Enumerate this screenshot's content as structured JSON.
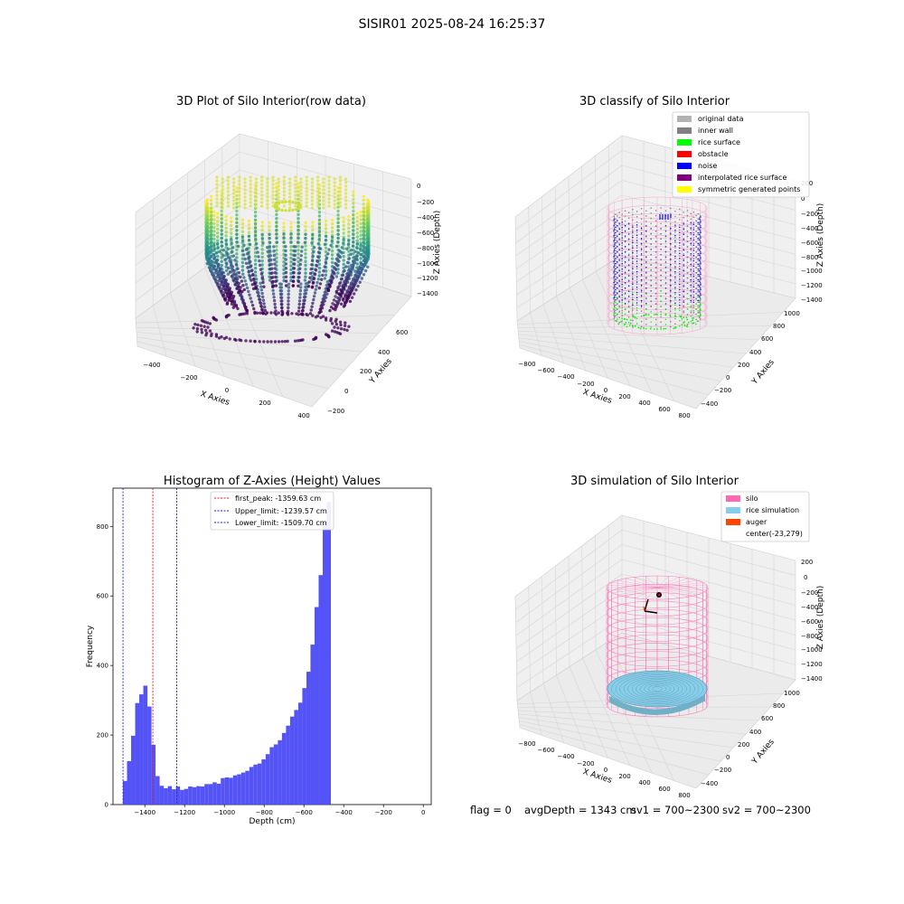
{
  "suptitle": "SISIR01 2025-08-24 16:25:37",
  "info": {
    "flag": "flag = 0",
    "avg_depth": "avgDepth = 1343 cm",
    "sv1": "sv1 = 700~2300",
    "sv2": "sv2 = 700~2300"
  },
  "colors": {
    "histogram": "#4b4bf5",
    "first_peak_line": "#e31a1c",
    "limit_lines": "#1f1fd6",
    "original_data": "#b3b3b3",
    "inner_wall": "#808080",
    "rice_surface": "#00ff00",
    "obstacle": "#ff0000",
    "noise": "#0000ff",
    "interpolated_rice_surface": "#800080",
    "symmetric_generated_points": "#ffff00",
    "silo": "#ff69b4",
    "rice_simulation": "#87ceeb",
    "auger": "#ff4500"
  },
  "chart_data": [
    {
      "type": "scatter",
      "title": "3D Plot of Silo Interior(row data)",
      "xlabel": "X Axies",
      "ylabel": "Y Axies",
      "zlabel": "Z Axies (Depth)",
      "x_ticks": [
        "−400",
        "−200",
        "0",
        "200",
        "400"
      ],
      "y_ticks": [
        "−200",
        "0",
        "200",
        "400",
        "600"
      ],
      "z_ticks": [
        "0",
        "−200",
        "−400",
        "−600",
        "−800",
        "−1000",
        "−1200",
        "−1400"
      ],
      "colormap": "viridis"
    },
    {
      "type": "scatter",
      "title": "3D classify of Silo Interior",
      "x_ticks": [
        "−800",
        "−600",
        "−400",
        "−200",
        "0",
        "200",
        "400",
        "600",
        "800"
      ],
      "y_ticks": [
        "−400",
        "−200",
        "0",
        "200",
        "400",
        "600",
        "800",
        "1000"
      ],
      "z_ticks": [
        "200",
        "0",
        "−200",
        "−400",
        "−600",
        "−800",
        "−1000",
        "−1200",
        "−1400"
      ],
      "xlabel": "X Axies",
      "ylabel": "Y Axies",
      "zlabel": "Z Axies (Depth)",
      "legend": [
        {
          "label": "original data",
          "color_key": "original_data"
        },
        {
          "label": "inner wall",
          "color_key": "inner_wall"
        },
        {
          "label": "rice surface",
          "color_key": "rice_surface"
        },
        {
          "label": "obstacle",
          "color_key": "obstacle"
        },
        {
          "label": "noise",
          "color_key": "noise"
        },
        {
          "label": "interpolated rice surface",
          "color_key": "interpolated_rice_surface"
        },
        {
          "label": "symmetric generated points",
          "color_key": "symmetric_generated_points"
        }
      ],
      "legend_position": "top-right"
    },
    {
      "type": "bar",
      "title": "Histogram of Z-Axies (Height) Values",
      "xlabel": "Depth (cm)",
      "ylabel": "Frequency",
      "xlim": [
        -1560,
        40
      ],
      "ylim": [
        0,
        910
      ],
      "x_ticks": [
        -1400,
        -1200,
        -1000,
        -800,
        -600,
        -400,
        -200,
        0
      ],
      "x_tick_labels": [
        "−1400",
        "−1200",
        "−1000",
        "−800",
        "−600",
        "−400",
        "−200",
        "0"
      ],
      "y_ticks": [
        0,
        200,
        400,
        600,
        800
      ],
      "bin_start": -1510,
      "bin_width": 20.5,
      "values": [
        68,
        125,
        198,
        292,
        317,
        342,
        282,
        172,
        82,
        54,
        47,
        53,
        44,
        52,
        42,
        45,
        52,
        50,
        53,
        52,
        59,
        59,
        64,
        60,
        76,
        78,
        77,
        84,
        87,
        92,
        97,
        108,
        115,
        118,
        130,
        145,
        165,
        173,
        185,
        206,
        227,
        253,
        272,
        293,
        335,
        382,
        460,
        568,
        660,
        805,
        870
      ],
      "lines": [
        {
          "label": "first_peak: -1359.63 cm",
          "x": -1359.63,
          "color_key": "first_peak_line"
        },
        {
          "label": "Upper_limit: -1239.57 cm",
          "x": -1239.57,
          "color_key": "limit_lines"
        },
        {
          "label": "Lower_limit: -1509.70 cm",
          "x": -1509.7,
          "color_key": "limit_lines"
        }
      ],
      "legend_position": "top-center",
      "grid": false
    },
    {
      "type": "scatter",
      "title": "3D simulation of Silo Interior",
      "x_ticks": [
        "−800",
        "−600",
        "−400",
        "−200",
        "0",
        "200",
        "400",
        "600",
        "800"
      ],
      "y_ticks": [
        "−400",
        "−200",
        "0",
        "200",
        "400",
        "600",
        "800",
        "1000"
      ],
      "z_ticks": [
        "200",
        "0",
        "−200",
        "−400",
        "−600",
        "−800",
        "−1000",
        "−1200",
        "−1400"
      ],
      "xlabel": "X Axies",
      "ylabel": "Y Axies",
      "zlabel": "Z Axies (Depth)",
      "legend": [
        {
          "label": "silo",
          "color_key": "silo"
        },
        {
          "label": "rice simulation",
          "color_key": "rice_simulation"
        },
        {
          "label": "auger",
          "color_key": "auger"
        },
        {
          "label": "center(-23,279)",
          "color_key": ""
        }
      ],
      "legend_position": "top-right"
    }
  ]
}
